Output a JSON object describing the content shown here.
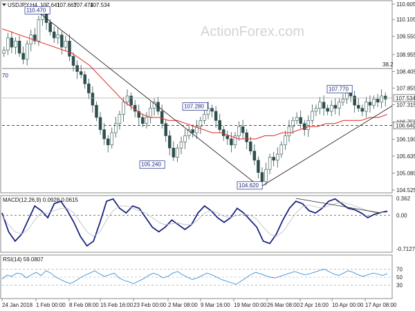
{
  "watermark": "ActionForex.com",
  "chart_data": [
    {
      "type": "candlestick",
      "title": "USDJPY,H4",
      "ohlc_header": [
        "107.641",
        "107.667",
        "107.474",
        "107.534"
      ],
      "ylim": [
        104.525,
        110.605
      ],
      "ytick_labels": [
        "110.605",
        "110.105",
        "109.550",
        "108.955",
        "108.405",
        "107.855",
        "107.315",
        "106.755",
        "106.190",
        "105.635",
        "105.080",
        "104.525"
      ],
      "xtick_labels": [
        "24 Jan 2018",
        "1 Feb 00:00",
        "8 Feb 08:00",
        "15 Feb 16:00",
        "23 Feb 00:00",
        "2 Mar 08:00",
        "9 Mar 16:00",
        "19 Mar 00:00",
        "26 Mar 08:00",
        "2 Apr 16:00",
        "10 Apr 00:00",
        "17 Apr 08:00"
      ],
      "current_price": "107.534",
      "marked_level": "106.640",
      "fibo_label": "38.2",
      "fibo_left_tag": "70",
      "annotations": [
        "110.470",
        "107.280",
        "105.240",
        "104.620",
        "107.770"
      ],
      "series": [
        {
          "name": "USDJPY",
          "close": [
            109.1,
            109.5,
            109.2,
            109.4,
            109.0,
            108.8,
            109.3,
            109.6,
            109.4,
            110.1,
            110.4,
            110.0,
            109.7,
            109.5,
            109.6,
            109.2,
            109.4,
            108.9,
            108.6,
            108.4,
            108.3,
            108.0,
            107.7,
            107.3,
            106.9,
            106.5,
            106.2,
            106.0,
            106.4,
            106.7,
            107.0,
            107.4,
            107.6,
            107.3,
            107.1,
            106.9,
            106.7,
            106.9,
            107.2,
            107.4,
            107.1,
            106.7,
            106.3,
            105.9,
            105.6,
            105.9,
            106.1,
            106.3,
            106.5,
            106.4,
            106.6,
            106.8,
            107.0,
            107.2,
            107.1,
            106.8,
            106.5,
            106.3,
            106.2,
            106.0,
            106.3,
            106.6,
            106.4,
            106.1,
            105.8,
            105.5,
            105.1,
            104.8,
            105.2,
            105.6,
            105.5,
            105.7,
            106.0,
            106.3,
            106.6,
            106.8,
            106.9,
            106.7,
            106.5,
            106.8,
            107.1,
            107.2,
            107.4,
            107.2,
            107.1,
            107.3,
            107.2,
            107.4,
            107.5,
            107.7,
            107.6,
            107.3,
            107.2,
            107.1,
            107.4,
            107.3,
            107.5,
            107.4,
            107.6,
            107.5
          ]
        },
        {
          "name": "SMA",
          "values": [
            109.8,
            109.7,
            109.6,
            109.5,
            109.4,
            109.3,
            109.2,
            109.1,
            109.0,
            108.8,
            108.6,
            108.3,
            108.0,
            107.7,
            107.4,
            107.2,
            107.0,
            106.9,
            106.9,
            106.8,
            106.8,
            106.7,
            106.6,
            106.5,
            106.4,
            106.4,
            106.3,
            106.2,
            106.2,
            106.2,
            106.3,
            106.3,
            106.4,
            106.4,
            106.5,
            106.6,
            106.6,
            106.7,
            106.7,
            106.8,
            106.8,
            106.8,
            106.9,
            106.9,
            107.0
          ]
        },
        {
          "name": "support",
          "values": [
            104.62,
            107.28
          ]
        },
        {
          "name": "trend",
          "values": [
            110.47,
            104.62
          ]
        }
      ],
      "fibo_level": 108.5,
      "horizontal_level": 106.64
    },
    {
      "type": "line",
      "title": "MACD(12,26,9) 0.0928 0.0615",
      "ytick_labels": [
        "0.362",
        "0.00",
        "-0.7127"
      ],
      "ylim": [
        -0.7127,
        0.362
      ],
      "series": [
        {
          "name": "MACD",
          "values": [
            0.05,
            -0.35,
            -0.55,
            -0.4,
            -0.1,
            0.2,
            0.1,
            -0.05,
            0.25,
            0.3,
            0.1,
            -0.15,
            -0.45,
            -0.65,
            -0.55,
            -0.15,
            0.3,
            0.35,
            0.15,
            0.05,
            0.2,
            0.15,
            -0.05,
            -0.25,
            -0.35,
            -0.25,
            -0.1,
            -0.2,
            -0.3,
            -0.2,
            0.05,
            0.2,
            0.1,
            -0.05,
            -0.15,
            -0.05,
            0.15,
            0.05,
            -0.1,
            -0.25,
            -0.55,
            -0.6,
            -0.4,
            -0.1,
            0.15,
            0.3,
            0.25,
            0.1,
            0.05,
            0.15,
            0.3,
            0.35,
            0.25,
            0.15,
            0.12,
            0.05,
            -0.05,
            0.02,
            0.06,
            0.09
          ]
        },
        {
          "name": "Signal",
          "values": [
            0.0,
            -0.2,
            -0.35,
            -0.4,
            -0.3,
            -0.1,
            0.05,
            0.05,
            0.1,
            0.15,
            0.15,
            0.05,
            -0.15,
            -0.35,
            -0.45,
            -0.35,
            -0.1,
            0.1,
            0.2,
            0.2,
            0.15,
            0.1,
            0.05,
            -0.05,
            -0.15,
            -0.2,
            -0.18,
            -0.16,
            -0.2,
            -0.2,
            -0.1,
            0.05,
            0.1,
            0.05,
            -0.02,
            -0.05,
            0.0,
            0.03,
            0.0,
            -0.08,
            -0.25,
            -0.4,
            -0.45,
            -0.35,
            -0.15,
            0.05,
            0.18,
            0.22,
            0.18,
            0.16,
            0.2,
            0.25,
            0.28,
            0.25,
            0.2,
            0.15,
            0.1,
            0.06,
            0.06,
            0.06
          ]
        },
        {
          "name": "trend",
          "values": [
            0.362,
            0.05
          ]
        }
      ]
    },
    {
      "type": "line",
      "title": "RSI(14) 59.0807",
      "ytick_labels": [
        "70",
        "50",
        "30"
      ],
      "ylim": [
        0,
        100
      ],
      "series": [
        {
          "name": "RSI",
          "values": [
            45,
            55,
            52,
            60,
            58,
            48,
            56,
            62,
            54,
            66,
            60,
            50,
            44,
            38,
            34,
            40,
            48,
            55,
            60,
            66,
            58,
            52,
            56,
            60,
            48,
            42,
            38,
            34,
            40,
            46,
            54,
            60,
            56,
            48,
            52,
            60,
            64,
            56,
            50,
            44,
            48,
            54,
            60,
            56,
            50,
            44,
            40,
            36,
            32,
            40,
            48,
            56,
            62,
            58,
            54,
            50,
            48,
            52,
            56,
            60,
            64,
            60,
            56,
            58,
            62,
            66,
            70,
            64,
            58,
            54,
            60,
            66,
            62,
            56,
            52,
            56,
            60,
            58,
            54,
            59
          ]
        }
      ]
    }
  ]
}
